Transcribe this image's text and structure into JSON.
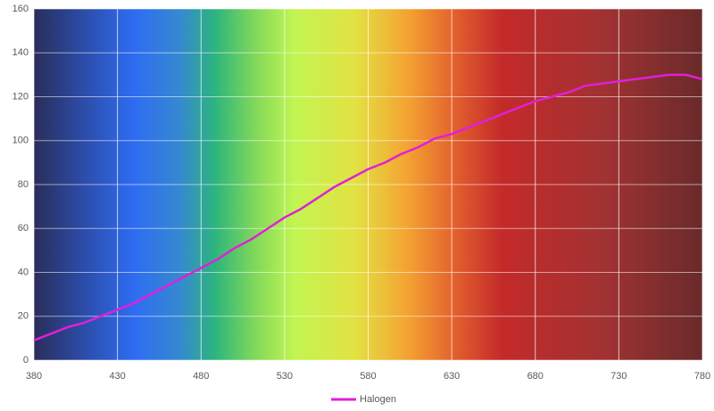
{
  "chart_data": {
    "type": "line",
    "x": [
      380,
      390,
      400,
      410,
      420,
      430,
      440,
      450,
      460,
      470,
      480,
      490,
      500,
      510,
      520,
      530,
      540,
      550,
      560,
      570,
      580,
      590,
      600,
      610,
      620,
      630,
      640,
      650,
      660,
      670,
      680,
      690,
      700,
      710,
      720,
      730,
      740,
      750,
      760,
      770,
      780
    ],
    "series": [
      {
        "name": "Halogen",
        "color": "#e020d8",
        "values": [
          9,
          12,
          15,
          17,
          20,
          23,
          26,
          30,
          34,
          38,
          42,
          46,
          51,
          55,
          60,
          65,
          69,
          74,
          79,
          83,
          87,
          90,
          94,
          97,
          101,
          103,
          106,
          109,
          112,
          115,
          118,
          120,
          122,
          125,
          126,
          127,
          128,
          129,
          130,
          130,
          128
        ]
      }
    ],
    "xlim": [
      380,
      780
    ],
    "xticks": [
      380,
      430,
      480,
      530,
      580,
      630,
      680,
      730,
      780
    ],
    "ylim": [
      0,
      160
    ],
    "yticks": [
      0,
      20,
      40,
      60,
      80,
      100,
      120,
      140,
      160
    ],
    "grid": true
  }
}
